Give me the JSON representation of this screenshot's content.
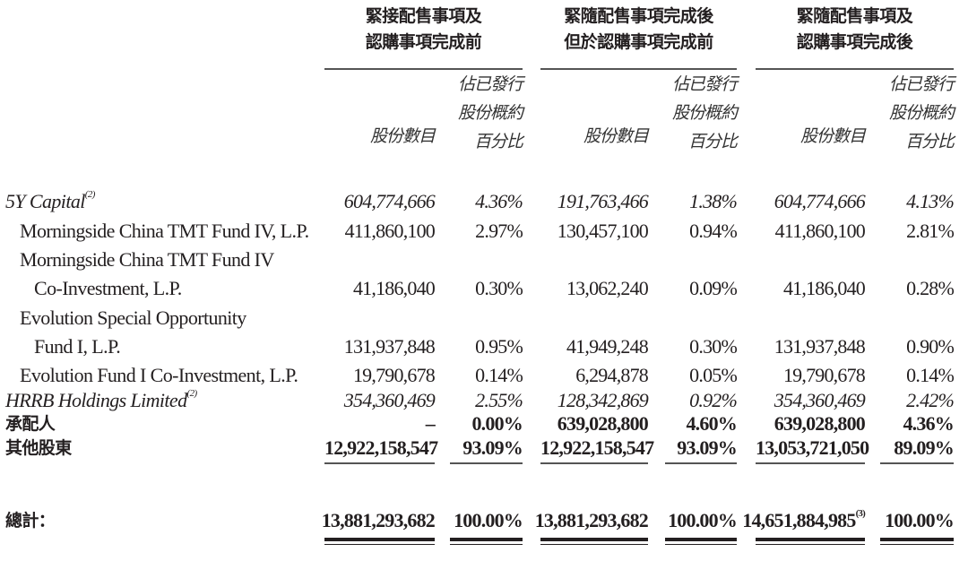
{
  "groups": [
    {
      "line1": "緊接配售事項及",
      "line2": "認購事項完成前"
    },
    {
      "line1": "緊隨配售事項完成後",
      "line2": "但於認購事項完成前"
    },
    {
      "line1": "緊隨配售事項及",
      "line2": "認購事項完成後"
    }
  ],
  "sub_headers": {
    "shares": "股份數目",
    "pct_line1": "佔已發行",
    "pct_line2": "股份概約",
    "pct_line3": "百分比"
  },
  "rows": [
    {
      "label": "5Y Capital",
      "note": "(2)",
      "style": "italic",
      "indent": 0,
      "values": [
        "604,774,666",
        "4.36%",
        "191,763,466",
        "1.38%",
        "604,774,666",
        "4.13%"
      ]
    },
    {
      "label": "Morningside China TMT Fund IV, L.P.",
      "style": "normal",
      "indent": 1,
      "values": [
        "411,860,100",
        "2.97%",
        "130,457,100",
        "0.94%",
        "411,860,100",
        "2.81%"
      ]
    },
    {
      "label": "Morningside China TMT Fund IV",
      "style": "normal",
      "indent": 1,
      "values": []
    },
    {
      "label": "Co-Investment, L.P.",
      "style": "normal",
      "indent": 2,
      "values": [
        "41,186,040",
        "0.30%",
        "13,062,240",
        "0.09%",
        "41,186,040",
        "0.28%"
      ]
    },
    {
      "label": "Evolution Special Opportunity",
      "style": "normal",
      "indent": 1,
      "values": []
    },
    {
      "label": "Fund I, L.P.",
      "style": "normal",
      "indent": 2,
      "values": [
        "131,937,848",
        "0.95%",
        "41,949,248",
        "0.30%",
        "131,937,848",
        "0.90%"
      ]
    },
    {
      "label": "Evolution Fund I Co-Investment, L.P.",
      "style": "normal",
      "indent": 1,
      "values": [
        "19,790,678",
        "0.14%",
        "6,294,878",
        "0.05%",
        "19,790,678",
        "0.14%"
      ]
    },
    {
      "label": "HRRB Holdings Limited",
      "note": "(2)",
      "style": "italic",
      "indent": 0,
      "values": [
        "354,360,469",
        "2.55%",
        "128,342,869",
        "0.92%",
        "354,360,469",
        "2.42%"
      ]
    },
    {
      "label": "承配人",
      "style": "bold",
      "indent": 0,
      "values": [
        "–",
        "0.00%",
        "639,028,800",
        "4.60%",
        "639,028,800",
        "4.36%"
      ]
    },
    {
      "label": "其他股東",
      "style": "bold",
      "indent": 0,
      "values": [
        "12,922,158,547",
        "93.09%",
        "12,922,158,547",
        "93.09%",
        "13,053,721,050",
        "89.09%"
      ]
    }
  ],
  "total": {
    "label": "總計：",
    "values": [
      "13,881,293,682",
      "100.00%",
      "13,881,293,682",
      "100.00%",
      "14,651,884,985",
      "100.00%"
    ],
    "notes": [
      "",
      "",
      "",
      "",
      "(3)",
      ""
    ]
  }
}
